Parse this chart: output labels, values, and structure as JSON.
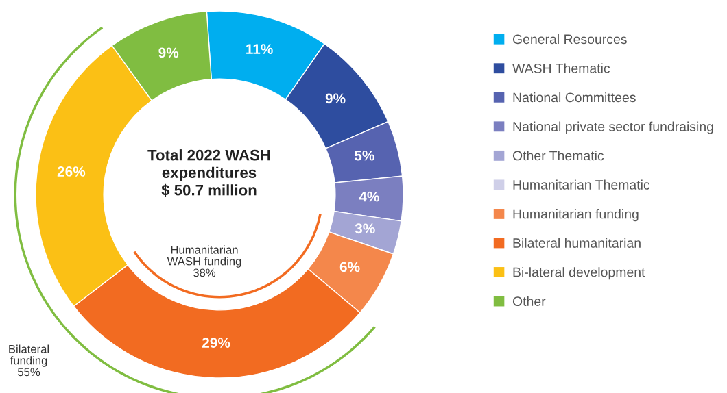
{
  "chart_data": {
    "type": "donut",
    "title": "Total 2022 WASH\nexpenditures\n$ 50.7 million",
    "categories": [
      "General Resources",
      "WASH Thematic",
      "National Committees",
      "National private sector fundraising",
      "Other Thematic",
      "Humanitarian Thematic",
      "Humanitarian funding",
      "Bilateral humanitarian",
      "Bi-lateral development",
      "Other"
    ],
    "values": [
      11,
      9,
      5,
      4,
      3,
      0,
      6,
      29,
      26,
      9
    ],
    "value_labels": [
      "11%",
      "9%",
      "5%",
      "4%",
      "3%",
      null,
      "6%",
      "29%",
      "26%",
      "9%"
    ],
    "colors": [
      "#00aeef",
      "#2e4d9f",
      "#5663b0",
      "#7b7fc0",
      "#a3a5d4",
      "#cfcfe8",
      "#f4874b",
      "#f26b21",
      "#fbc015",
      "#80bd41"
    ],
    "annotations": [
      "Humanitarian\nWASH funding\n38%",
      "Bilateral\nfunding\n55%"
    ],
    "legend": "right"
  }
}
